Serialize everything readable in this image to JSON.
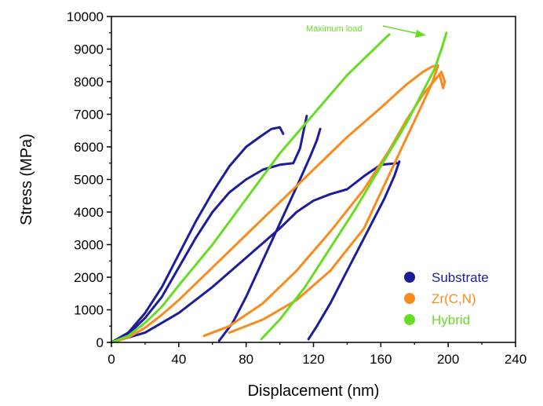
{
  "chart_data": {
    "type": "line",
    "title": "",
    "xlabel": "Displacement (nm)",
    "ylabel": "Stress (MPa)",
    "xlim": [
      0,
      240
    ],
    "ylim": [
      0,
      10000
    ],
    "xticks": [
      0,
      40,
      80,
      120,
      160,
      200,
      240
    ],
    "yticks": [
      0,
      1000,
      2000,
      3000,
      4000,
      5000,
      6000,
      7000,
      8000,
      9000,
      10000
    ],
    "legend_position": "bottom-right",
    "annotation": {
      "text": "Maximum load",
      "color": "#66dd22"
    },
    "series": [
      {
        "name": "Substrate",
        "color": "#1c1c9c",
        "curves": [
          {
            "x": [
              0,
              10,
              20,
              30,
              40,
              50,
              60,
              70,
              80,
              88,
              95,
              100,
              102
            ],
            "y": [
              0,
              300,
              900,
              1700,
              2700,
              3700,
              4600,
              5400,
              6000,
              6300,
              6550,
              6600,
              6400
            ]
          },
          {
            "x": [
              0,
              10,
              20,
              30,
              40,
              50,
              60,
              70,
              80,
              90,
              100,
              108,
              112,
              116
            ],
            "y": [
              0,
              250,
              750,
              1400,
              2300,
              3200,
              4000,
              4600,
              5000,
              5300,
              5450,
              5500,
              5950,
              6950
            ]
          },
          {
            "x": [
              64,
              72,
              80,
              88,
              96,
              104,
              112,
              118,
              122,
              124
            ],
            "y": [
              50,
              600,
              1400,
              2300,
              3200,
              4100,
              5000,
              5700,
              6200,
              6550
            ]
          },
          {
            "x": [
              0,
              20,
              40,
              60,
              80,
              100,
              110,
              120,
              130,
              140,
              150,
              160,
              170
            ],
            "y": [
              0,
              300,
              900,
              1700,
              2600,
              3500,
              4000,
              4350,
              4550,
              4700,
              5100,
              5450,
              5500
            ]
          },
          {
            "x": [
              117,
              122,
              130,
              138,
              146,
              154,
              162,
              168,
              171
            ],
            "y": [
              100,
              500,
              1200,
              2000,
              2800,
              3600,
              4400,
              5100,
              5550
            ]
          }
        ]
      },
      {
        "name": "Zr(C,N)",
        "color": "#f98b1e",
        "curves": [
          {
            "x": [
              0,
              10,
              20,
              30,
              40,
              60,
              80,
              100,
              120,
              140,
              160,
              175,
              185,
              190,
              193
            ],
            "y": [
              0,
              150,
              450,
              850,
              1300,
              2300,
              3300,
              4300,
              5300,
              6300,
              7200,
              7900,
              8300,
              8450,
              8500
            ]
          },
          {
            "x": [
              55,
              70,
              90,
              110,
              130,
              150,
              165,
              175,
              185,
              193,
              196,
              198,
              197,
              195
            ],
            "y": [
              200,
              500,
              1200,
              2200,
              3400,
              4700,
              5900,
              6800,
              7600,
              8100,
              8300,
              8000,
              7800,
              8200
            ]
          },
          {
            "x": [
              70,
              90,
              110,
              130,
              150,
              160,
              170,
              180,
              190,
              194
            ],
            "y": [
              300,
              700,
              1300,
              2200,
              3500,
              4600,
              5700,
              6800,
              7900,
              8500
            ]
          }
        ]
      },
      {
        "name": "Hybrid",
        "color": "#66dd22",
        "curves": [
          {
            "x": [
              0,
              10,
              20,
              30,
              40,
              60,
              80,
              100,
              120,
              140,
              160,
              165
            ],
            "y": [
              0,
              200,
              600,
              1100,
              1750,
              3000,
              4400,
              5800,
              7000,
              8200,
              9200,
              9450
            ]
          },
          {
            "x": [
              89,
              100,
              115,
              130,
              145,
              160,
              175,
              185,
              192,
              196,
              199
            ],
            "y": [
              100,
              700,
              1700,
              2900,
              4100,
              5400,
              6700,
              7700,
              8400,
              9000,
              9500
            ]
          }
        ]
      }
    ]
  }
}
